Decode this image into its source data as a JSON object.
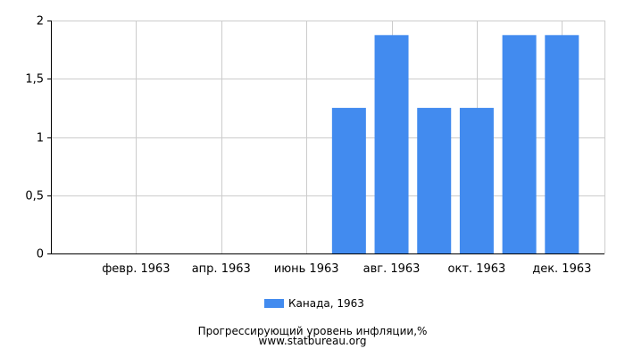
{
  "chart_data": {
    "type": "bar",
    "x_tick_labels": [
      "февр. 1963",
      "апр. 1963",
      "июнь 1963",
      "авг. 1963",
      "окт. 1963",
      "дек. 1963"
    ],
    "categories": [
      "янв. 1963",
      "февр. 1963",
      "март 1963",
      "апр. 1963",
      "май 1963",
      "июнь 1963",
      "июль 1963",
      "авг. 1963",
      "сент. 1963",
      "окт. 1963",
      "нояб. 1963",
      "дек. 1963"
    ],
    "series": [
      {
        "name": "Канада, 1963",
        "values": [
          0,
          0,
          0,
          0,
          0,
          0,
          1.25,
          1.875,
          1.25,
          1.25,
          1.875,
          1.875
        ]
      }
    ],
    "y_ticks": [
      "0",
      "0,5",
      "1",
      "1,5",
      "2"
    ],
    "y_tick_values": [
      0,
      0.5,
      1,
      1.5,
      2
    ],
    "ylim": [
      0,
      2
    ],
    "grid": true,
    "legend_position": "bottom-center",
    "title": "Прогрессирующий уровень инфляции,%",
    "source": "www.statbureau.org"
  },
  "colors": {
    "bar": "#428bef",
    "grid": "#cccccc",
    "axis": "#000000"
  }
}
